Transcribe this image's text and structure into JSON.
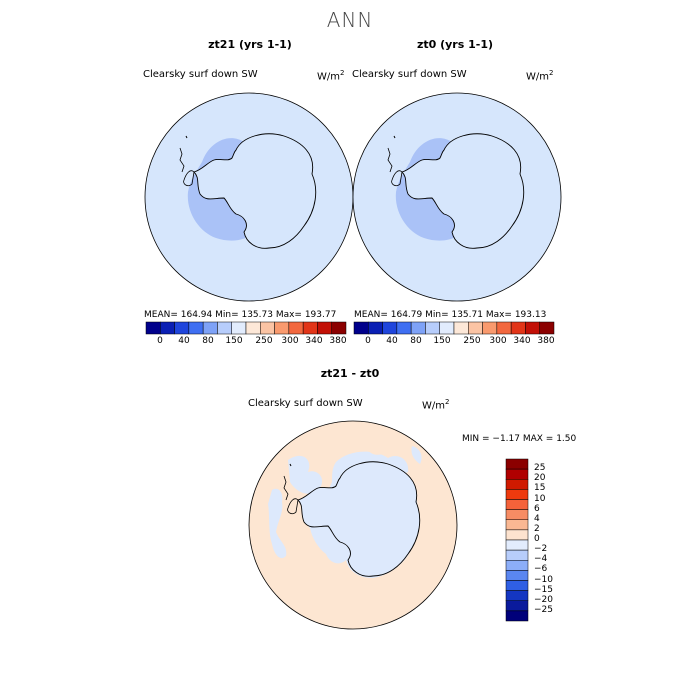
{
  "figure": {
    "title": "ANN"
  },
  "panels": [
    {
      "title": "zt21 (yrs 1-1)",
      "variable": "Clearsky surf down SW",
      "units": "W/m",
      "units_sup": "2",
      "stats": "MEAN=  164.94    Min=  135.73    Max=  193.77"
    },
    {
      "title": "zt0 (yrs 1-1)",
      "variable": "Clearsky surf down SW",
      "units": "W/m",
      "units_sup": "2",
      "stats": "MEAN=  164.79    Min=  135.71    Max=  193.13"
    },
    {
      "title": "zt21 - zt0",
      "variable": "Clearsky surf down SW",
      "units": "W/m",
      "units_sup": "2",
      "stats": "MIN =   −1.17  MAX =    1.50"
    }
  ],
  "colorbar_top": {
    "labels": [
      "0",
      "40",
      "80",
      "150",
      "250",
      "300",
      "340",
      "380"
    ],
    "colors": [
      "#00008b",
      "#0a1fb4",
      "#1f45dc",
      "#3f6ff2",
      "#7ea2f7",
      "#b7cdfb",
      "#e2ecfd",
      "#fde8d8",
      "#fbc4a4",
      "#f99a6e",
      "#f2683f",
      "#e23518",
      "#c21006",
      "#8b0000"
    ]
  },
  "colorbar_diff": {
    "labels": [
      "25",
      "20",
      "15",
      "10",
      "6",
      "4",
      "2",
      "0",
      "−2",
      "−4",
      "−6",
      "−10",
      "−15",
      "−20",
      "−25"
    ],
    "colors": [
      "#8b0000",
      "#b00000",
      "#d01a00",
      "#ee3a0e",
      "#f4623a",
      "#f78c64",
      "#fab893",
      "#fde3cf",
      "#e2ecfd",
      "#b7cdfb",
      "#8caef8",
      "#5a86f0",
      "#2f5fe4",
      "#1436c2",
      "#0a1a9c",
      "#00007a"
    ]
  },
  "map_colors": {
    "ocean_top": "#d6e6fc",
    "ice_band": "#a9c1f7",
    "land_top": "#d6e6fc",
    "diff_pos": "#fde6d2",
    "diff_neg": "#dde9fc"
  }
}
